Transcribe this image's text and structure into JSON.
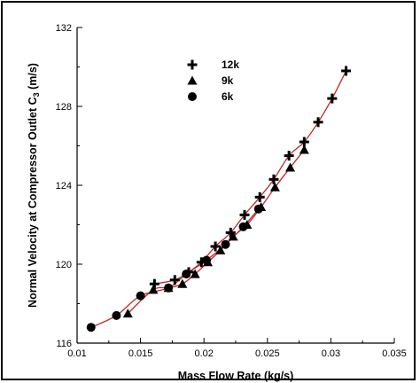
{
  "chart_data": {
    "type": "scatter",
    "title": "",
    "xlabel": "Mass Flow Rate (kg/s)",
    "ylabel_main": "Normal Velocity at Compressor Outlet C",
    "ylabel_sub": "3",
    "ylabel_unit": " (m/s)",
    "xlim": [
      0.01,
      0.035
    ],
    "ylim": [
      116,
      132
    ],
    "x_ticks": [
      "0.01",
      "0.015",
      "0.02",
      "0.025",
      "0.03",
      "0.035"
    ],
    "y_ticks": [
      "116",
      "120",
      "124",
      "128",
      "132"
    ],
    "grid": false,
    "legend_position": "top-left-inside",
    "line_color": "#c0272d",
    "marker_color": "#000000",
    "series": [
      {
        "name": "12k",
        "marker": "plus",
        "x": [
          0.0161,
          0.0177,
          0.0188,
          0.0198,
          0.0209,
          0.0221,
          0.0232,
          0.0244,
          0.0255,
          0.0267,
          0.0279,
          0.029,
          0.0301,
          0.0312
        ],
        "y": [
          119.0,
          119.2,
          119.6,
          120.1,
          120.9,
          121.6,
          122.5,
          123.4,
          124.3,
          125.5,
          126.2,
          127.2,
          128.4,
          129.8
        ]
      },
      {
        "name": "9k",
        "marker": "triangle",
        "x": [
          0.014,
          0.016,
          0.0172,
          0.0183,
          0.0193,
          0.0203,
          0.0213,
          0.0223,
          0.0234,
          0.0245,
          0.0256,
          0.0268,
          0.0279
        ],
        "y": [
          117.5,
          118.7,
          118.8,
          119.0,
          119.5,
          120.1,
          120.7,
          121.4,
          122.0,
          122.9,
          123.9,
          124.9,
          125.8
        ]
      },
      {
        "name": "6k",
        "marker": "circle",
        "x": [
          0.0111,
          0.0131,
          0.015,
          0.0172,
          0.0186,
          0.0202,
          0.0217,
          0.0231,
          0.0243
        ],
        "y": [
          116.8,
          117.4,
          118.4,
          118.8,
          119.5,
          120.2,
          121.0,
          121.9,
          122.8
        ]
      }
    ]
  }
}
